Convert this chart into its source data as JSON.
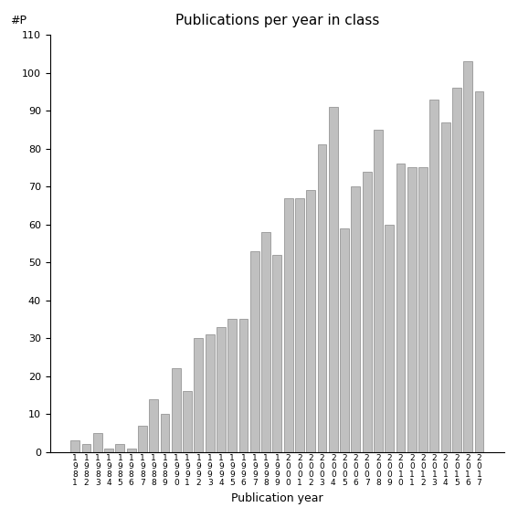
{
  "title": "Publications per year in class",
  "xlabel": "Publication year",
  "ylabel": "#P",
  "ylim": [
    0,
    110
  ],
  "yticks": [
    0,
    10,
    20,
    30,
    40,
    50,
    60,
    70,
    80,
    90,
    100,
    110
  ],
  "years": [
    "1981",
    "1982",
    "1983",
    "1984",
    "1985",
    "1986",
    "1987",
    "1988",
    "1989",
    "1990",
    "1991",
    "1992",
    "1993",
    "1994",
    "1995",
    "1996",
    "1997",
    "1998",
    "1999",
    "2000",
    "2001",
    "2002",
    "2003",
    "2004",
    "2005",
    "2006",
    "2007",
    "2008",
    "2009",
    "2010",
    "2011",
    "2012",
    "2013",
    "2014",
    "2015",
    "2016",
    "2017"
  ],
  "values": [
    3,
    2,
    5,
    1,
    2,
    1,
    7,
    14,
    10,
    22,
    16,
    30,
    31,
    33,
    35,
    35,
    53,
    58,
    52,
    67,
    67,
    69,
    81,
    91,
    59,
    70,
    74,
    85,
    60,
    76,
    75,
    75,
    93,
    87,
    96,
    103,
    95
  ],
  "bar_color": "#c0c0c0",
  "bar_edgecolor": "#888888",
  "background_color": "#ffffff",
  "figsize": [
    5.67,
    5.67
  ],
  "dpi": 100
}
